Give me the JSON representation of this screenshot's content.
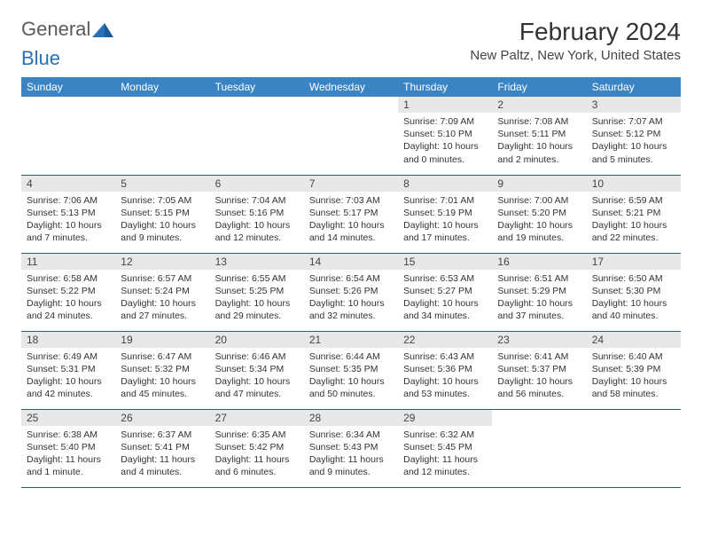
{
  "logo": {
    "general": "General",
    "blue": "Blue"
  },
  "title": "February 2024",
  "location": "New Paltz, New York, United States",
  "headers": [
    "Sunday",
    "Monday",
    "Tuesday",
    "Wednesday",
    "Thursday",
    "Friday",
    "Saturday"
  ],
  "colors": {
    "header_bg": "#3b84c4",
    "header_text": "#ffffff",
    "daynum_bg": "#e8e8e8",
    "border": "#2a5a8a",
    "logo_blue": "#2a70b8",
    "logo_gray": "#5a5a5a",
    "text": "#333333"
  },
  "weeks": [
    [
      null,
      null,
      null,
      null,
      {
        "day": "1",
        "sunrise": "7:09 AM",
        "sunset": "5:10 PM",
        "daylight": "10 hours and 0 minutes."
      },
      {
        "day": "2",
        "sunrise": "7:08 AM",
        "sunset": "5:11 PM",
        "daylight": "10 hours and 2 minutes."
      },
      {
        "day": "3",
        "sunrise": "7:07 AM",
        "sunset": "5:12 PM",
        "daylight": "10 hours and 5 minutes."
      }
    ],
    [
      {
        "day": "4",
        "sunrise": "7:06 AM",
        "sunset": "5:13 PM",
        "daylight": "10 hours and 7 minutes."
      },
      {
        "day": "5",
        "sunrise": "7:05 AM",
        "sunset": "5:15 PM",
        "daylight": "10 hours and 9 minutes."
      },
      {
        "day": "6",
        "sunrise": "7:04 AM",
        "sunset": "5:16 PM",
        "daylight": "10 hours and 12 minutes."
      },
      {
        "day": "7",
        "sunrise": "7:03 AM",
        "sunset": "5:17 PM",
        "daylight": "10 hours and 14 minutes."
      },
      {
        "day": "8",
        "sunrise": "7:01 AM",
        "sunset": "5:19 PM",
        "daylight": "10 hours and 17 minutes."
      },
      {
        "day": "9",
        "sunrise": "7:00 AM",
        "sunset": "5:20 PM",
        "daylight": "10 hours and 19 minutes."
      },
      {
        "day": "10",
        "sunrise": "6:59 AM",
        "sunset": "5:21 PM",
        "daylight": "10 hours and 22 minutes."
      }
    ],
    [
      {
        "day": "11",
        "sunrise": "6:58 AM",
        "sunset": "5:22 PM",
        "daylight": "10 hours and 24 minutes."
      },
      {
        "day": "12",
        "sunrise": "6:57 AM",
        "sunset": "5:24 PM",
        "daylight": "10 hours and 27 minutes."
      },
      {
        "day": "13",
        "sunrise": "6:55 AM",
        "sunset": "5:25 PM",
        "daylight": "10 hours and 29 minutes."
      },
      {
        "day": "14",
        "sunrise": "6:54 AM",
        "sunset": "5:26 PM",
        "daylight": "10 hours and 32 minutes."
      },
      {
        "day": "15",
        "sunrise": "6:53 AM",
        "sunset": "5:27 PM",
        "daylight": "10 hours and 34 minutes."
      },
      {
        "day": "16",
        "sunrise": "6:51 AM",
        "sunset": "5:29 PM",
        "daylight": "10 hours and 37 minutes."
      },
      {
        "day": "17",
        "sunrise": "6:50 AM",
        "sunset": "5:30 PM",
        "daylight": "10 hours and 40 minutes."
      }
    ],
    [
      {
        "day": "18",
        "sunrise": "6:49 AM",
        "sunset": "5:31 PM",
        "daylight": "10 hours and 42 minutes."
      },
      {
        "day": "19",
        "sunrise": "6:47 AM",
        "sunset": "5:32 PM",
        "daylight": "10 hours and 45 minutes."
      },
      {
        "day": "20",
        "sunrise": "6:46 AM",
        "sunset": "5:34 PM",
        "daylight": "10 hours and 47 minutes."
      },
      {
        "day": "21",
        "sunrise": "6:44 AM",
        "sunset": "5:35 PM",
        "daylight": "10 hours and 50 minutes."
      },
      {
        "day": "22",
        "sunrise": "6:43 AM",
        "sunset": "5:36 PM",
        "daylight": "10 hours and 53 minutes."
      },
      {
        "day": "23",
        "sunrise": "6:41 AM",
        "sunset": "5:37 PM",
        "daylight": "10 hours and 56 minutes."
      },
      {
        "day": "24",
        "sunrise": "6:40 AM",
        "sunset": "5:39 PM",
        "daylight": "10 hours and 58 minutes."
      }
    ],
    [
      {
        "day": "25",
        "sunrise": "6:38 AM",
        "sunset": "5:40 PM",
        "daylight": "11 hours and 1 minute."
      },
      {
        "day": "26",
        "sunrise": "6:37 AM",
        "sunset": "5:41 PM",
        "daylight": "11 hours and 4 minutes."
      },
      {
        "day": "27",
        "sunrise": "6:35 AM",
        "sunset": "5:42 PM",
        "daylight": "11 hours and 6 minutes."
      },
      {
        "day": "28",
        "sunrise": "6:34 AM",
        "sunset": "5:43 PM",
        "daylight": "11 hours and 9 minutes."
      },
      {
        "day": "29",
        "sunrise": "6:32 AM",
        "sunset": "5:45 PM",
        "daylight": "11 hours and 12 minutes."
      },
      null,
      null
    ]
  ]
}
